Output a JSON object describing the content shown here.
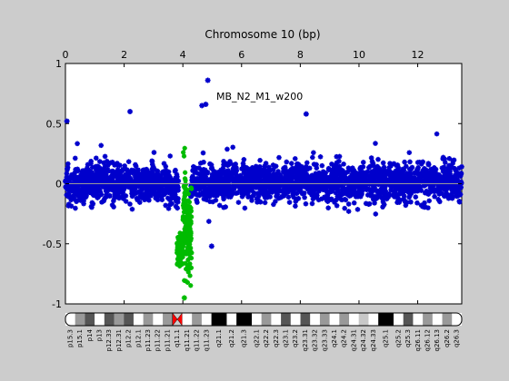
{
  "chart_data": {
    "type": "scatter",
    "title": "Chromosome 10 (bp)",
    "annotation": "MB_N2_M1_w200",
    "x_axis": {
      "position": "top",
      "range": [
        0,
        13.5
      ],
      "ticks": [
        0,
        2,
        4,
        6,
        8,
        10,
        12
      ]
    },
    "y_axis": {
      "range": [
        -1,
        1
      ],
      "ticks": [
        1,
        0.5,
        0,
        -0.5,
        -1
      ],
      "tick_labels": [
        "1",
        "0.5",
        "0",
        "-0.5",
        "-1"
      ]
    },
    "grid": false,
    "reference_line": 0,
    "colors": {
      "series_main": "#0000cc",
      "series_deletion": "#00bb00",
      "centromere": "#ff0000",
      "plot_bg": "#ffffff",
      "figure_bg": "#cccccc"
    },
    "series": [
      {
        "color": "#0000cc",
        "x_range": [
          0,
          13.5
        ],
        "y_center": 0.01,
        "y_spread": 0.25,
        "notes": "dense noisy copy-number points"
      },
      {
        "color": "#00bb00",
        "x_range": [
          3.8,
          4.3
        ],
        "y_center": -0.4,
        "notes": "focal region with values down to about -0.95 and up to about 0.35"
      }
    ],
    "highlight_points": [
      {
        "x": 4.85,
        "y": 0.86
      },
      {
        "x": 4.65,
        "y": 0.65
      },
      {
        "x": 4.78,
        "y": 0.66
      },
      {
        "x": 2.2,
        "y": 0.6
      },
      {
        "x": 8.2,
        "y": 0.58
      },
      {
        "x": 4.05,
        "y": -0.95
      },
      {
        "x": 4.98,
        "y": -0.52
      },
      {
        "x": 0.05,
        "y": 0.52
      }
    ],
    "ideogram": {
      "chromosome": "10",
      "bands": [
        {
          "name": "p15.3",
          "stain": "gneg"
        },
        {
          "name": "p15.1",
          "stain": "gpos50"
        },
        {
          "name": "p14",
          "stain": "gpos75"
        },
        {
          "name": "p13",
          "stain": "gneg"
        },
        {
          "name": "p12.33",
          "stain": "gpos75"
        },
        {
          "name": "p12.31",
          "stain": "gpos50"
        },
        {
          "name": "p12.2",
          "stain": "gpos75"
        },
        {
          "name": "p12.1",
          "stain": "gneg"
        },
        {
          "name": "p11.23",
          "stain": "gpos50"
        },
        {
          "name": "p11.22",
          "stain": "gneg"
        },
        {
          "name": "p11.21",
          "stain": "gpos50"
        },
        {
          "name": "q11.1",
          "stain": "acen"
        },
        {
          "name": "q11.21",
          "stain": "gneg"
        },
        {
          "name": "q11.22",
          "stain": "gpos50"
        },
        {
          "name": "q11.23",
          "stain": "gneg"
        },
        {
          "name": "q21.1",
          "stain": "gpos100"
        },
        {
          "name": "q21.2",
          "stain": "gneg"
        },
        {
          "name": "q21.3",
          "stain": "gpos100"
        },
        {
          "name": "q22.1",
          "stain": "gneg"
        },
        {
          "name": "q22.2",
          "stain": "gpos50"
        },
        {
          "name": "q22.3",
          "stain": "gneg"
        },
        {
          "name": "q23.1",
          "stain": "gpos75"
        },
        {
          "name": "q23.2",
          "stain": "gneg"
        },
        {
          "name": "q23.31",
          "stain": "gpos75"
        },
        {
          "name": "q23.32",
          "stain": "gneg"
        },
        {
          "name": "q23.33",
          "stain": "gpos50"
        },
        {
          "name": "q24.1",
          "stain": "gneg"
        },
        {
          "name": "q24.2",
          "stain": "gpos50"
        },
        {
          "name": "q24.31",
          "stain": "gneg"
        },
        {
          "name": "q24.32",
          "stain": "gpos25"
        },
        {
          "name": "q24.33",
          "stain": "gneg"
        },
        {
          "name": "q25.1",
          "stain": "gpos100"
        },
        {
          "name": "q25.2",
          "stain": "gneg"
        },
        {
          "name": "q25.3",
          "stain": "gpos75"
        },
        {
          "name": "q26.11",
          "stain": "gneg"
        },
        {
          "name": "q26.12",
          "stain": "gpos50"
        },
        {
          "name": "q26.13",
          "stain": "gneg"
        },
        {
          "name": "q26.2",
          "stain": "gpos50"
        },
        {
          "name": "q26.3",
          "stain": "gneg"
        }
      ]
    }
  }
}
